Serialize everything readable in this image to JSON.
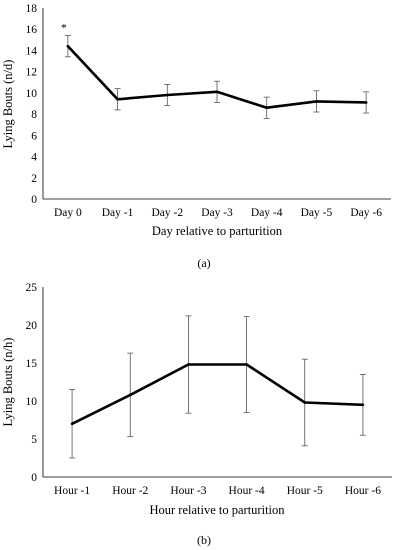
{
  "chart_data": [
    {
      "type": "line",
      "panel_label": "(a)",
      "xlabel": "Day relative to parturition",
      "ylabel": "Lying Bouts (n/d)",
      "categories": [
        "Day 0",
        "Day -1",
        "Day -2",
        "Day -3",
        "Day -4",
        "Day -5",
        "Day -6"
      ],
      "values": [
        14.4,
        9.4,
        9.8,
        10.1,
        8.6,
        9.2,
        9.1
      ],
      "error": [
        1.0,
        1.0,
        1.0,
        1.0,
        1.0,
        1.0,
        1.0
      ],
      "annotations": [
        {
          "category": "Day 0",
          "text": "*"
        }
      ],
      "ylim": [
        0,
        18
      ],
      "yticks": [
        0,
        2,
        4,
        6,
        8,
        10,
        12,
        14,
        16,
        18
      ],
      "grid": false
    },
    {
      "type": "line",
      "panel_label": "(b)",
      "xlabel": "Hour relative to parturition",
      "ylabel": "Lying Bouts (n/h)",
      "categories": [
        "Hour -1",
        "Hour -2",
        "Hour -3",
        "Hour -4",
        "Hour -5",
        "Hour -6"
      ],
      "values": [
        7.0,
        10.8,
        14.8,
        14.8,
        9.8,
        9.5
      ],
      "error": [
        4.5,
        5.5,
        6.4,
        6.3,
        5.7,
        4.0
      ],
      "ylim": [
        0,
        25
      ],
      "yticks": [
        0,
        5,
        10,
        15,
        20,
        25
      ],
      "grid": false
    }
  ]
}
